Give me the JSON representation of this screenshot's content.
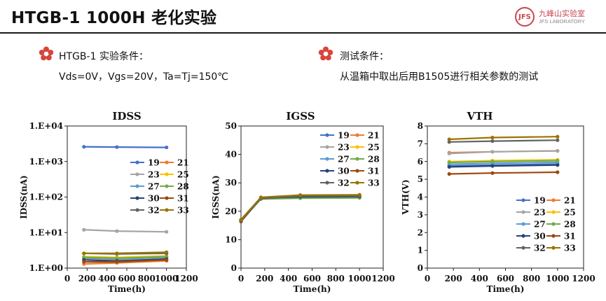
{
  "header": {
    "title": "HTGB-1 1000H 老化实验"
  },
  "logo": {
    "mark": "JFS",
    "name_cn": "九峰山实验室",
    "name_en": "JFS LABORATORY"
  },
  "left_condition": {
    "label": "HTGB-1 实验条件：",
    "detail": "Vds=0V，Vgs=20V，Ta=Tj=150℃"
  },
  "right_condition": {
    "label": "测试条件：",
    "detail": "从温箱中取出后用B1505进行相关参数的测试"
  },
  "colors": {
    "accent": "#d6453d"
  },
  "chart_data": [
    {
      "type": "line",
      "title": "IDSS",
      "xlabel": "Time(h)",
      "ylabel": "IDSS(nA)",
      "xlim": [
        0,
        1200
      ],
      "xticks": [
        0,
        200,
        400,
        600,
        800,
        1000,
        1200
      ],
      "yscale": "log",
      "ylim": [
        1,
        10000
      ],
      "yticks": [
        1,
        10,
        100,
        1000,
        10000
      ],
      "ytick_labels": [
        "1.E+00",
        "1.E+01",
        "1.E+02",
        "1.E+03",
        "1.E+04"
      ],
      "legend": "right-middle",
      "x": [
        168,
        500,
        1000
      ],
      "series": [
        {
          "name": "19",
          "color": "#4472c4",
          "values": [
            2600,
            2550,
            2500
          ]
        },
        {
          "name": "21",
          "color": "#ed7d31",
          "values": [
            1.3,
            1.4,
            1.6
          ]
        },
        {
          "name": "23",
          "color": "#a5a5a5",
          "values": [
            12,
            11,
            10.5
          ]
        },
        {
          "name": "25",
          "color": "#ffc000",
          "values": [
            2.1,
            2.0,
            2.2
          ]
        },
        {
          "name": "27",
          "color": "#5b9bd5",
          "values": [
            1.9,
            1.8,
            2.0
          ]
        },
        {
          "name": "28",
          "color": "#70ad47",
          "values": [
            2.0,
            1.9,
            2.1
          ]
        },
        {
          "name": "30",
          "color": "#264478",
          "values": [
            1.7,
            1.6,
            1.8
          ]
        },
        {
          "name": "31",
          "color": "#9e480e",
          "values": [
            1.5,
            1.5,
            1.7
          ]
        },
        {
          "name": "32",
          "color": "#636363",
          "values": [
            2.6,
            2.5,
            2.6
          ]
        },
        {
          "name": "33",
          "color": "#997300",
          "values": [
            2.6,
            2.6,
            2.8
          ]
        }
      ]
    },
    {
      "type": "line",
      "title": "IGSS",
      "xlabel": "Time(h)",
      "ylabel": "IGSS(nA)",
      "xlim": [
        0,
        1200
      ],
      "xticks": [
        0,
        200,
        400,
        600,
        800,
        1000,
        1200
      ],
      "ylim": [
        0,
        50
      ],
      "yticks": [
        0,
        10,
        20,
        30,
        40,
        50
      ],
      "legend": "top-right",
      "x": [
        0,
        168,
        500,
        1000
      ],
      "series": [
        {
          "name": "19",
          "color": "#4472c4",
          "values": [
            17,
            24.5,
            25,
            25
          ]
        },
        {
          "name": "21",
          "color": "#ed7d31",
          "values": [
            16.5,
            24.6,
            25.2,
            25.1
          ]
        },
        {
          "name": "23",
          "color": "#a5a5a5",
          "values": [
            16.8,
            24.4,
            24.9,
            25
          ]
        },
        {
          "name": "25",
          "color": "#ffc000",
          "values": [
            16.9,
            24.7,
            25.3,
            25.3
          ]
        },
        {
          "name": "27",
          "color": "#5b9bd5",
          "values": [
            16.7,
            24.5,
            24.8,
            24.9
          ]
        },
        {
          "name": "28",
          "color": "#70ad47",
          "values": [
            16.6,
            24.3,
            24.6,
            24.7
          ]
        },
        {
          "name": "30",
          "color": "#264478",
          "values": [
            16.4,
            24.6,
            25.1,
            25.2
          ]
        },
        {
          "name": "31",
          "color": "#9e480e",
          "values": [
            16.5,
            24.8,
            25.5,
            25.6
          ]
        },
        {
          "name": "32",
          "color": "#636363",
          "values": [
            16.9,
            24.4,
            25.4,
            25.4
          ]
        },
        {
          "name": "33",
          "color": "#997300",
          "values": [
            17.1,
            24.9,
            25.7,
            25.8
          ]
        }
      ]
    },
    {
      "type": "line",
      "title": "VTH",
      "xlabel": "Time(h)",
      "ylabel": "VTH(V)",
      "xlim": [
        0,
        1200
      ],
      "xticks": [
        0,
        200,
        400,
        600,
        800,
        1000,
        1200
      ],
      "ylim": [
        0,
        8
      ],
      "yticks": [
        0,
        1,
        2,
        3,
        4,
        5,
        6,
        7,
        8
      ],
      "legend": "bottom-right",
      "x": [
        168,
        500,
        1000
      ],
      "series": [
        {
          "name": "19",
          "color": "#4472c4",
          "values": [
            5.75,
            5.8,
            5.85
          ]
        },
        {
          "name": "21",
          "color": "#ed7d31",
          "values": [
            6.5,
            6.55,
            6.6
          ]
        },
        {
          "name": "23",
          "color": "#a5a5a5",
          "values": [
            6.45,
            6.55,
            6.6
          ]
        },
        {
          "name": "25",
          "color": "#ffc000",
          "values": [
            6.0,
            6.05,
            6.1
          ]
        },
        {
          "name": "27",
          "color": "#5b9bd5",
          "values": [
            5.85,
            5.9,
            5.95
          ]
        },
        {
          "name": "28",
          "color": "#70ad47",
          "values": [
            5.95,
            6.0,
            6.05
          ]
        },
        {
          "name": "30",
          "color": "#264478",
          "values": [
            5.7,
            5.75,
            5.8
          ]
        },
        {
          "name": "31",
          "color": "#9e480e",
          "values": [
            5.3,
            5.35,
            5.4
          ]
        },
        {
          "name": "32",
          "color": "#636363",
          "values": [
            7.1,
            7.15,
            7.2
          ]
        },
        {
          "name": "33",
          "color": "#997300",
          "values": [
            7.25,
            7.35,
            7.4
          ]
        }
      ]
    }
  ]
}
